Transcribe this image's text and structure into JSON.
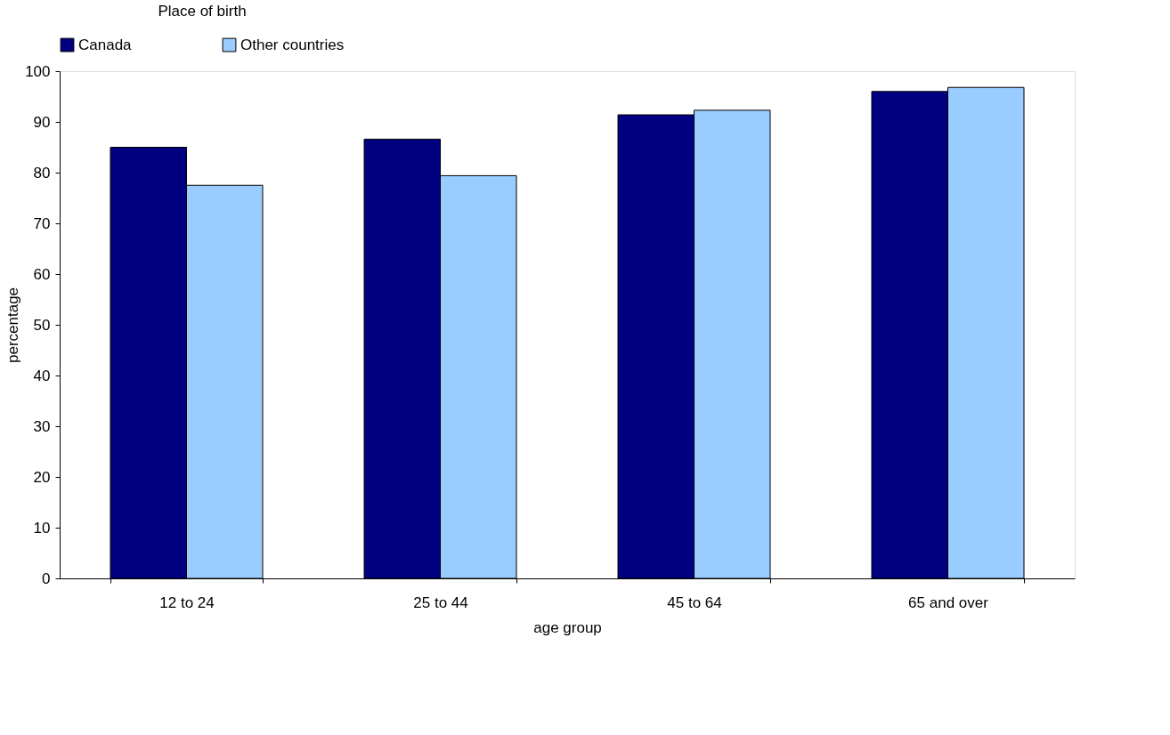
{
  "chart_data": {
    "type": "bar",
    "legend_title": "Place of birth",
    "xlabel": "age group",
    "ylabel": "percentage",
    "categories": [
      "12 to 24",
      "25 to 44",
      "45 to 64",
      "65 and over"
    ],
    "series": [
      {
        "name": "Canada",
        "color": "#000080",
        "values": [
          85.0,
          86.6,
          91.4,
          96.0
        ]
      },
      {
        "name": "Other countries",
        "color": "#99ccff",
        "values": [
          77.5,
          79.4,
          92.3,
          96.8
        ]
      }
    ],
    "ylim": [
      0,
      100
    ],
    "yticks": [
      0,
      10,
      20,
      30,
      40,
      50,
      60,
      70,
      80,
      90,
      100
    ],
    "grid": false,
    "legend": "top"
  }
}
